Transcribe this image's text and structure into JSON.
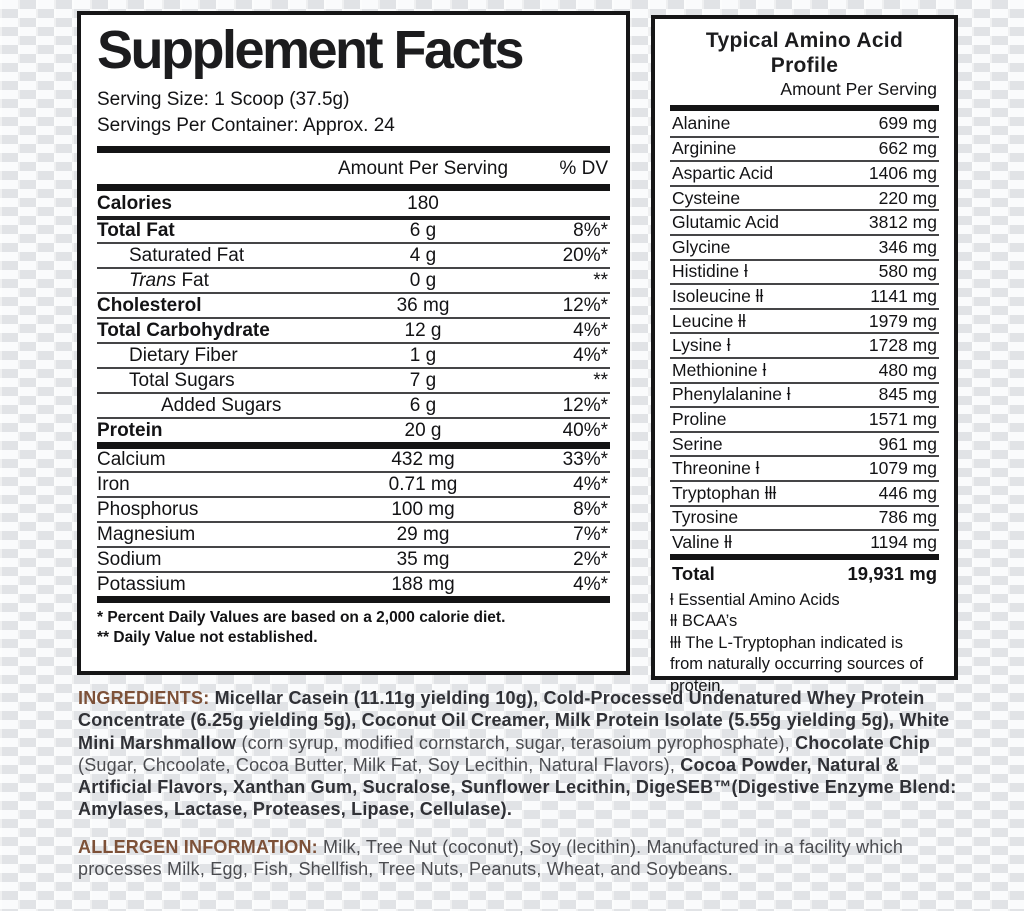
{
  "colors": {
    "accent_brown": "#7d5138",
    "bold_text": "#303136",
    "body_text": "#4b4c50"
  },
  "supplement_facts": {
    "title": "Supplement Facts",
    "serving_size": "Serving Size: 1 Scoop (37.5g)",
    "servings_per_container": "Servings Per Container: Approx. 24",
    "col_amount": "Amount Per Serving",
    "col_dv": "% DV",
    "rows": [
      {
        "name": "Calories",
        "amount": "180",
        "dv": "",
        "bold": true,
        "rule": "none",
        "indent": 0
      },
      {
        "name": "Total Fat",
        "amount": "6 g",
        "dv": "8%*",
        "bold": true,
        "rule": "med",
        "indent": 0
      },
      {
        "name": "Saturated Fat",
        "amount": "4 g",
        "dv": "20%*",
        "bold": false,
        "rule": "hair",
        "indent": 1
      },
      {
        "name_italic": "Trans",
        "name": " Fat",
        "amount": "0 g",
        "dv": "**",
        "bold": false,
        "rule": "hair",
        "indent": 1
      },
      {
        "name": "Cholesterol",
        "amount": "36 mg",
        "dv": "12%*",
        "bold": true,
        "rule": "hair",
        "indent": 0
      },
      {
        "name": "Total Carbohydrate",
        "amount": "12 g",
        "dv": "4%*",
        "bold": true,
        "rule": "hair",
        "indent": 0
      },
      {
        "name": "Dietary Fiber",
        "amount": "1 g",
        "dv": "4%*",
        "bold": false,
        "rule": "hair",
        "indent": 1
      },
      {
        "name": "Total Sugars",
        "amount": "7 g",
        "dv": "**",
        "bold": false,
        "rule": "hair",
        "indent": 1
      },
      {
        "name": "Added Sugars",
        "amount": "6 g",
        "dv": "12%*",
        "bold": false,
        "rule": "hair",
        "indent": 2
      },
      {
        "name": "Protein",
        "amount": "20 g",
        "dv": "40%*",
        "bold": true,
        "rule": "hair",
        "indent": 0
      },
      {
        "name": "Calcium",
        "amount": "432 mg",
        "dv": "33%*",
        "bold": false,
        "rule": "thick",
        "indent": 0
      },
      {
        "name": "Iron",
        "amount": "0.71 mg",
        "dv": "4%*",
        "bold": false,
        "rule": "hair",
        "indent": 0
      },
      {
        "name": "Phosphorus",
        "amount": "100 mg",
        "dv": "8%*",
        "bold": false,
        "rule": "hair",
        "indent": 0
      },
      {
        "name": "Magnesium",
        "amount": "29 mg",
        "dv": "7%*",
        "bold": false,
        "rule": "hair",
        "indent": 0
      },
      {
        "name": "Sodium",
        "amount": "35 mg",
        "dv": "2%*",
        "bold": false,
        "rule": "hair",
        "indent": 0
      },
      {
        "name": "Potassium",
        "amount": "188 mg",
        "dv": "4%*",
        "bold": false,
        "rule": "hair",
        "indent": 0
      }
    ],
    "footnote1": "* Percent Daily Values are based on a 2,000 calorie diet.",
    "footnote2": "** Daily Value not established."
  },
  "amino_profile": {
    "title": "Typical Amino Acid Profile",
    "subtitle": "Amount Per Serving",
    "rows": [
      {
        "name": "Alanine",
        "marker": "",
        "amount": "699 mg",
        "rule": "none"
      },
      {
        "name": "Arginine",
        "marker": "",
        "amount": "662 mg",
        "rule": "hair"
      },
      {
        "name": "Aspartic Acid",
        "marker": "",
        "amount": "1406 mg",
        "rule": "hair"
      },
      {
        "name": "Cysteine",
        "marker": "",
        "amount": "220 mg",
        "rule": "hair"
      },
      {
        "name": "Glutamic Acid",
        "marker": "",
        "amount": "3812 mg",
        "rule": "hair"
      },
      {
        "name": "Glycine",
        "marker": "",
        "amount": "346 mg",
        "rule": "hair"
      },
      {
        "name": "Histidine",
        "marker": "ƚ",
        "amount": "580 mg",
        "rule": "hair"
      },
      {
        "name": "Isoleucine",
        "marker": "ƚƚ",
        "amount": "1141 mg",
        "rule": "hair"
      },
      {
        "name": "Leucine",
        "marker": "ƚƚ",
        "amount": "1979 mg",
        "rule": "hair"
      },
      {
        "name": "Lysine",
        "marker": "ƚ",
        "amount": "1728 mg",
        "rule": "hair"
      },
      {
        "name": "Methionine",
        "marker": "ƚ",
        "amount": "480 mg",
        "rule": "hair"
      },
      {
        "name": "Phenylalanine",
        "marker": "ƚ",
        "amount": "845 mg",
        "rule": "hair"
      },
      {
        "name": "Proline",
        "marker": "",
        "amount": "1571 mg",
        "rule": "hair"
      },
      {
        "name": "Serine",
        "marker": "",
        "amount": "961 mg",
        "rule": "hair"
      },
      {
        "name": "Threonine",
        "marker": "ƚ",
        "amount": "1079 mg",
        "rule": "hair"
      },
      {
        "name": "Tryptophan",
        "marker": "ƚƚƚ",
        "amount": "446 mg",
        "rule": "hair"
      },
      {
        "name": "Tyrosine",
        "marker": "",
        "amount": "786 mg",
        "rule": "hair"
      },
      {
        "name": "Valine",
        "marker": "ƚƚ",
        "amount": "1194 mg",
        "rule": "hair"
      }
    ],
    "total_label": "Total",
    "total_amount": "19,931 mg",
    "footnote1": "ƚ Essential Amino Acids",
    "footnote2": "ƚƚ BCAA’s",
    "footnote3": "ƚƚƚ The L-Tryptophan indicated is from naturally occurring sources of protein."
  },
  "ingredients": {
    "segments": [
      {
        "t": "INGREDIENTS: ",
        "b": true,
        "c": "accent_brown"
      },
      {
        "t": "Micellar Casein (11.11g yielding 10g), Cold-Processed Undenatured Whey Protein Concentrate (6.25g yielding 5g), Coconut Oil Creamer, Milk Protein Isolate (5.55g yielding 5g), White Mini Marshmallow ",
        "b": true
      },
      {
        "t": "(corn syrup, modified cornstarch, sugar, terasoium pyrophosphate), ",
        "b": false
      },
      {
        "t": "Chocolate Chip ",
        "b": true
      },
      {
        "t": "(Sugar, Chcoolate, Cocoa Butter, Milk Fat, Soy Lecithin, Natural Flavors), ",
        "b": false
      },
      {
        "t": "Cocoa Powder, Natural & Artificial Flavors, Xanthan Gum, Sucralose, Sunflower Lecithin, DigeSEB™(Digestive Enzyme Blend: Amylases, Lactase, Proteases, Lipase, Cellulase).",
        "b": true
      }
    ]
  },
  "allergen": {
    "segments": [
      {
        "t": "ALLERGEN INFORMATION: ",
        "b": true,
        "c": "accent_brown"
      },
      {
        "t": "Milk, Tree Nut (coconut), Soy (lecithin). Manufactured in a facility which processes Milk, Egg, Fish, Shellfish, Tree Nuts, Peanuts, Wheat, and Soybeans.",
        "b": false
      }
    ]
  }
}
